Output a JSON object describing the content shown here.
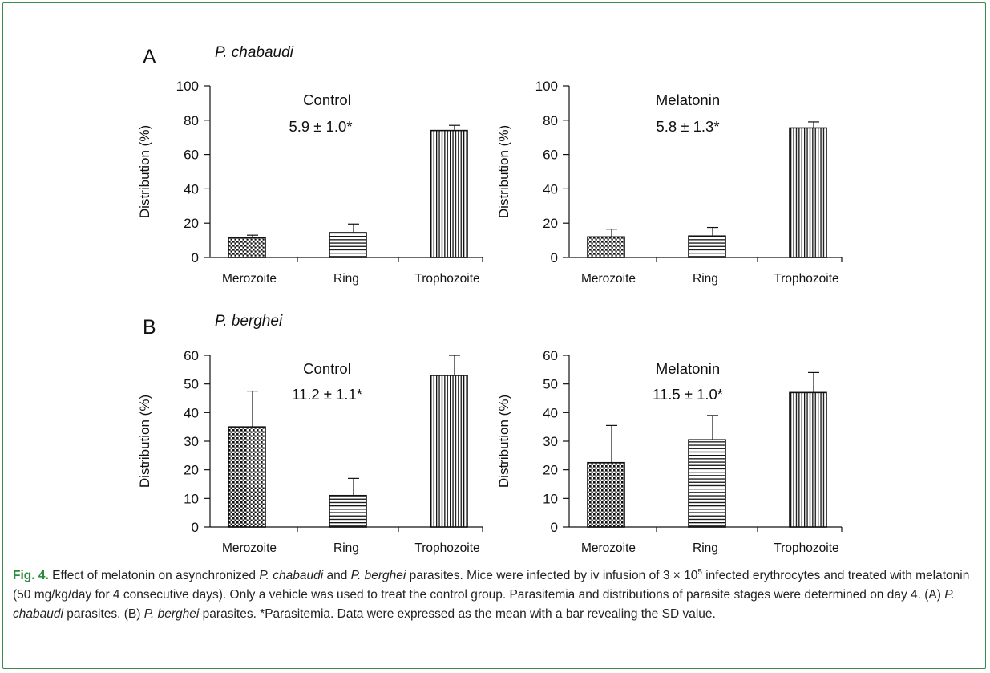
{
  "figure": {
    "panels": [
      {
        "letter": "A",
        "species": "P. chabaudi"
      },
      {
        "letter": "B",
        "species": "P. berghei"
      }
    ]
  },
  "chart_data": [
    {
      "type": "bar",
      "panel": "A",
      "species": "P. chabaudi",
      "group": "Control",
      "annotation": "5.9 ± 1.0*",
      "categories": [
        "Merozoite",
        "Ring",
        "Trophozoite"
      ],
      "values": [
        11.5,
        14.5,
        74.0
      ],
      "error": [
        1.5,
        5.0,
        3.0
      ],
      "ylabel": "Distribution (%)",
      "ylim": [
        0,
        100
      ],
      "yticks": [
        0,
        20,
        40,
        60,
        80,
        100
      ],
      "fill_patterns": [
        "dotted",
        "horizontal-lines",
        "vertical-lines"
      ]
    },
    {
      "type": "bar",
      "panel": "A",
      "species": "P. chabaudi",
      "group": "Melatonin",
      "annotation": "5.8 ± 1.3*",
      "categories": [
        "Merozoite",
        "Ring",
        "Trophozoite"
      ],
      "values": [
        12.0,
        12.5,
        75.5
      ],
      "error": [
        4.5,
        5.0,
        3.5
      ],
      "ylabel": "Distribution (%)",
      "ylim": [
        0,
        100
      ],
      "yticks": [
        0,
        20,
        40,
        60,
        80,
        100
      ],
      "fill_patterns": [
        "dotted",
        "horizontal-lines",
        "vertical-lines"
      ]
    },
    {
      "type": "bar",
      "panel": "B",
      "species": "P. berghei",
      "group": "Control",
      "annotation": "11.2 ± 1.1*",
      "categories": [
        "Merozoite",
        "Ring",
        "Trophozoite"
      ],
      "values": [
        35.0,
        11.0,
        53.0
      ],
      "error": [
        12.5,
        6.0,
        7.0
      ],
      "ylabel": "Distribution (%)",
      "ylim": [
        0,
        60
      ],
      "yticks": [
        0,
        10,
        20,
        30,
        40,
        50,
        60
      ],
      "fill_patterns": [
        "dotted",
        "horizontal-lines",
        "vertical-lines"
      ]
    },
    {
      "type": "bar",
      "panel": "B",
      "species": "P. berghei",
      "group": "Melatonin",
      "annotation": "11.5 ± 1.0*",
      "categories": [
        "Merozoite",
        "Ring",
        "Trophozoite"
      ],
      "values": [
        22.5,
        30.5,
        47.0
      ],
      "error": [
        13.0,
        8.5,
        7.0
      ],
      "ylabel": "Distribution (%)",
      "ylim": [
        0,
        60
      ],
      "yticks": [
        0,
        10,
        20,
        30,
        40,
        50,
        60
      ],
      "fill_patterns": [
        "dotted",
        "horizontal-lines",
        "vertical-lines"
      ]
    }
  ],
  "caption": {
    "label": "Fig. 4.",
    "parts": [
      {
        "text": " Effect of melatonin on asynchronized ",
        "italic": false
      },
      {
        "text": "P. chabaudi",
        "italic": true
      },
      {
        "text": " and ",
        "italic": false
      },
      {
        "text": "P. berghei",
        "italic": true
      },
      {
        "text": " parasites. Mice were infected by iv infusion of 3 × 10",
        "italic": false
      },
      {
        "text": "5",
        "italic": false,
        "sup": true
      },
      {
        "text": " infected erythrocytes and treated with melatonin (50 mg/kg/day for 4 consecutive days). Only a vehicle was used to treat the control group. Parasitemia and distributions of parasite stages were determined on day 4. (A) ",
        "italic": false
      },
      {
        "text": "P. chabaudi",
        "italic": true
      },
      {
        "text": " parasites. (B) ",
        "italic": false
      },
      {
        "text": "P. berghei",
        "italic": true
      },
      {
        "text": " parasites. *Parasitemia. Data were expressed as the mean with a bar revealing the SD value.",
        "italic": false
      }
    ]
  },
  "colors": {
    "frame": "#3a8a4a",
    "caption_label": "#2e8a3c",
    "ink": "#111111"
  }
}
